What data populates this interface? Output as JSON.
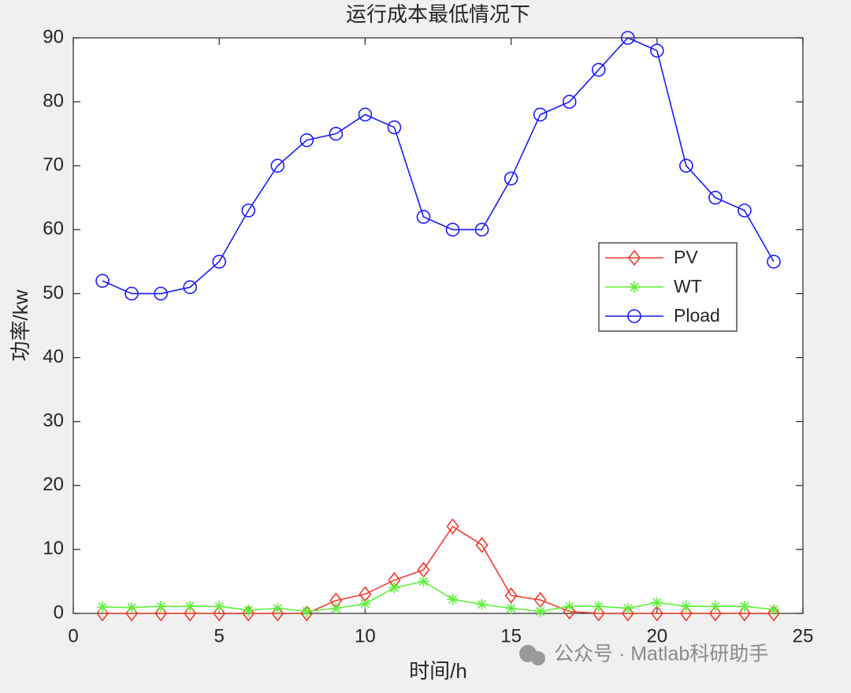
{
  "chart_data": {
    "type": "line",
    "title": "运行成本最低情况下",
    "x_label": "时间/h",
    "y_label": "功率/kw",
    "x": [
      1,
      2,
      3,
      4,
      5,
      6,
      7,
      8,
      9,
      10,
      11,
      12,
      13,
      14,
      15,
      16,
      17,
      18,
      19,
      20,
      21,
      22,
      23,
      24
    ],
    "series": [
      {
        "name": "PV",
        "color": "#ef3b2c",
        "marker": "diamond",
        "values": [
          0,
          0,
          0,
          0,
          0,
          0,
          0,
          0,
          2,
          3,
          5.2,
          6.8,
          13.6,
          10.7,
          2.8,
          2.1,
          0.3,
          0,
          0,
          0,
          0,
          0,
          0,
          0
        ]
      },
      {
        "name": "WT",
        "color": "#5ef03a",
        "marker": "asterisk",
        "values": [
          1,
          0.9,
          1.1,
          1.1,
          1.1,
          0.5,
          0.8,
          0.3,
          0.8,
          1.5,
          4,
          5,
          2.2,
          1.4,
          0.8,
          0.3,
          1.1,
          1.1,
          0.8,
          1.7,
          1.1,
          1.1,
          1.1,
          0.6
        ]
      },
      {
        "name": "Pload",
        "color": "#1a1aff",
        "marker": "circle",
        "values": [
          52,
          50,
          50,
          51,
          55,
          63,
          70,
          74,
          75,
          78,
          76,
          62,
          60,
          60,
          68,
          78,
          80,
          85,
          90,
          88,
          70,
          65,
          63,
          55
        ]
      }
    ],
    "xlim": [
      0,
      25
    ],
    "xticks": [
      0,
      5,
      10,
      15,
      20,
      25
    ],
    "ylim": [
      0,
      90
    ],
    "yticks": [
      0,
      10,
      20,
      30,
      40,
      50,
      60,
      70,
      80,
      90
    ],
    "grid": false,
    "legend": "right",
    "watermark": "公众号 · Matlab科研助手"
  }
}
